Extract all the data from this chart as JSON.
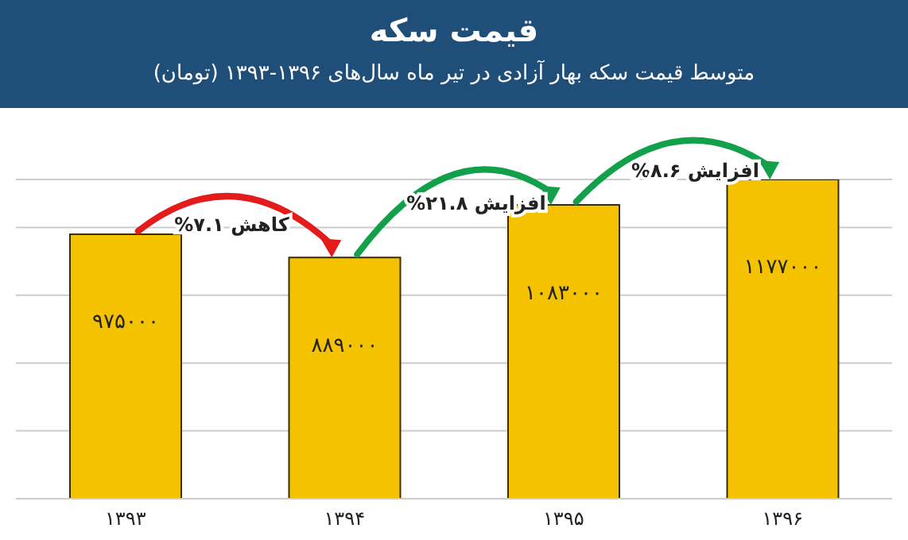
{
  "chart_data": {
    "type": "bar",
    "title": "قیمت سکه",
    "subtitle": "متوسط قیمت سکه بهار آزادی در تیر ماه سال‌های ۱۳۹۶-۱۳۹۳ (تومان)",
    "categories": [
      "۱۳۹۳",
      "۱۳۹۴",
      "۱۳۹۵",
      "۱۳۹۶"
    ],
    "values": [
      975000,
      889000,
      1083000,
      1177000
    ],
    "value_labels": [
      "۹۷۵۰۰۰",
      "۸۸۹۰۰۰",
      "۱۰۸۳۰۰۰",
      "۱۱۷۷۰۰۰"
    ],
    "color": "#f5c200",
    "annotations": [
      "کاهش ۷.۱%",
      "افزایش ۲۱.۸%",
      "افزایش ۸.۶%"
    ],
    "grid": "y"
  }
}
